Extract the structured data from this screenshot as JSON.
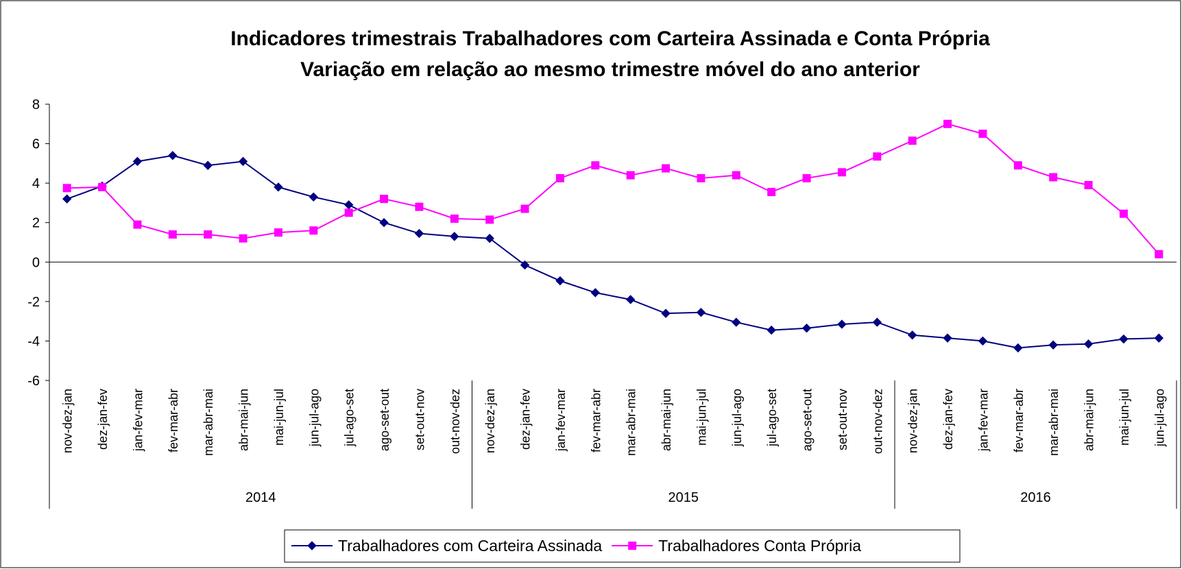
{
  "chart_data": {
    "type": "line",
    "title": "Indicadores trimestrais Trabalhadores com Carteira Assinada e Conta Própria",
    "subtitle": "Variação em relação ao mesmo trimestre móvel do ano anterior",
    "categories": [
      "nov-dez-jan",
      "dez-jan-fev",
      "jan-fev-mar",
      "fev-mar-abr",
      "mar-abr-mai",
      "abr-mai-jun",
      "mai-jun-jul",
      "jun-jul-ago",
      "jul-ago-set",
      "ago-set-out",
      "set-out-nov",
      "out-nov-dez",
      "nov-dez-jan",
      "dez-jan-fev",
      "jan-fev-mar",
      "fev-mar-abr",
      "mar-abr-mai",
      "abr-mai-jun",
      "mai-jun-jul",
      "jun-jul-ago",
      "jul-ago-set",
      "ago-set-out",
      "set-out-nov",
      "out-nov-dez",
      "nov-dez-jan",
      "dez-jan-fev",
      "jan-fev-mar",
      "fev-mar-abr",
      "mar-abr-mai",
      "abr-mai-jun",
      "mai-jun-jul",
      "jun-jul-ago"
    ],
    "category_groups": [
      {
        "label": "2014",
        "span": 12
      },
      {
        "label": "2015",
        "span": 12
      },
      {
        "label": "2016",
        "span": 8
      }
    ],
    "series": [
      {
        "name": "Trabalhadores com Carteira Assinada",
        "color": "#000080",
        "marker": "diamond",
        "values": [
          3.2,
          3.85,
          5.1,
          5.4,
          4.9,
          5.1,
          3.8,
          3.3,
          2.9,
          2.0,
          1.45,
          1.3,
          1.2,
          -0.15,
          -0.95,
          -1.55,
          -1.9,
          -2.6,
          -2.55,
          -3.05,
          -3.45,
          -3.35,
          -3.15,
          -3.05,
          -3.7,
          -3.85,
          -4.0,
          -4.35,
          -4.2,
          -4.15,
          -3.9,
          -3.85
        ]
      },
      {
        "name": "Trabalhadores Conta Própria",
        "color": "#ff00ff",
        "marker": "square",
        "values": [
          3.75,
          3.8,
          1.9,
          1.4,
          1.4,
          1.2,
          1.5,
          1.6,
          2.5,
          3.2,
          2.8,
          2.2,
          2.15,
          2.7,
          4.25,
          4.9,
          4.4,
          4.75,
          4.25,
          4.4,
          3.55,
          4.25,
          4.55,
          5.35,
          6.15,
          7.0,
          6.5,
          4.9,
          4.3,
          3.9,
          2.45,
          0.4
        ]
      }
    ],
    "ylim": [
      -6,
      8
    ],
    "yticks": [
      -6,
      -4,
      -2,
      0,
      2,
      4,
      6,
      8
    ],
    "grid": false,
    "legend": "bottom"
  }
}
